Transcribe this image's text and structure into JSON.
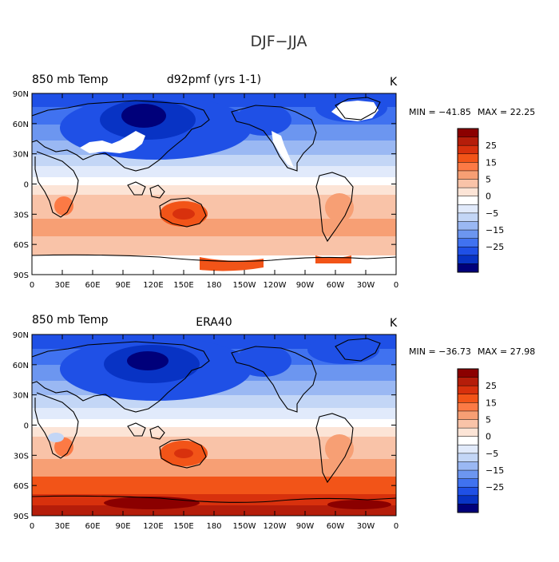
{
  "title": "DJF−JJA",
  "colors": {
    "levels": [
      "#8b0000",
      "#b51d0a",
      "#d8310d",
      "#f25418",
      "#fc7a45",
      "#f79f74",
      "#f9c3a8",
      "#fce4d6",
      "#ffffff",
      "#e1eafb",
      "#c3d6f6",
      "#9ab8f3",
      "#6c96f0",
      "#4072f0",
      "#1f50e6",
      "#0833c4",
      "#00007a"
    ],
    "land_outline": "#000000",
    "missing": "#ffffff"
  },
  "colorbar": {
    "labels": [
      "25",
      "15",
      "5",
      "0",
      "−5",
      "−15",
      "−25"
    ]
  },
  "axes": {
    "lat_labels": [
      "90N",
      "60N",
      "30N",
      "0",
      "30S",
      "60S",
      "90S"
    ],
    "lon_labels": [
      "0",
      "30E",
      "60E",
      "90E",
      "120E",
      "150E",
      "180",
      "150W",
      "120W",
      "90W",
      "60W",
      "30W",
      "0"
    ]
  },
  "panels": [
    {
      "left_title": "850 mb Temp",
      "center_title": "d92pmf (yrs 1-1)",
      "units": "K",
      "min_label": "MIN = −41.85",
      "max_label": "MAX =  22.25"
    },
    {
      "left_title": "850 mb Temp",
      "center_title": "ERA40",
      "units": "K",
      "min_label": "MIN = −36.73",
      "max_label": "MAX =  27.98"
    }
  ]
}
